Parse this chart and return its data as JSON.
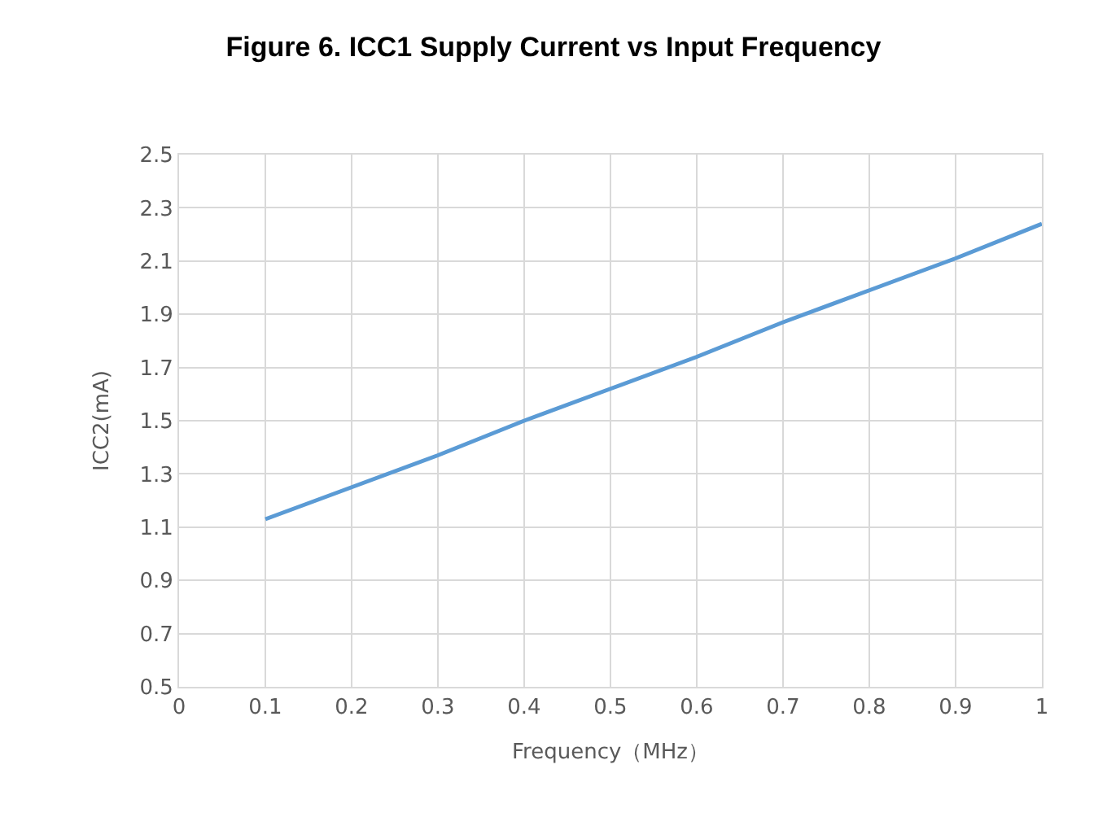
{
  "chart_data": {
    "type": "line",
    "title": "Figure 6. ICC1 Supply Current vs Input Frequency",
    "xlabel": "Frequency（MHz）",
    "ylabel": "ICC2(mA)",
    "x": [
      0.1,
      0.2,
      0.3,
      0.4,
      0.5,
      0.6,
      0.7,
      0.8,
      0.9,
      1.0
    ],
    "series": [
      {
        "color": "#5b9bd5",
        "values": [
          1.13,
          1.25,
          1.37,
          1.5,
          1.62,
          1.74,
          1.87,
          1.99,
          2.11,
          2.24
        ]
      }
    ],
    "xlim": [
      0,
      1
    ],
    "xticks": [
      0,
      0.1,
      0.2,
      0.3,
      0.4,
      0.5,
      0.6,
      0.7,
      0.8,
      0.9,
      1
    ],
    "ylim": [
      0.5,
      2.5
    ],
    "yticks": [
      0.5,
      0.7,
      0.9,
      1.1,
      1.3,
      1.5,
      1.7,
      1.9,
      2.1,
      2.3,
      2.5
    ],
    "grid": true,
    "marker": "none",
    "line_style": "solid"
  }
}
